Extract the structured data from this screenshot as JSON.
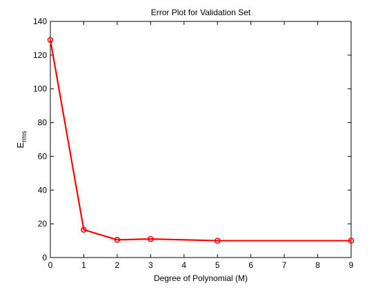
{
  "chart_data": {
    "type": "line",
    "title": "Error Plot for Validation Set",
    "xlabel": "Degree of Polynomial (M)",
    "ylabel_main": "E",
    "ylabel_sub": "rms",
    "xlim": [
      0,
      9
    ],
    "ylim": [
      0,
      140
    ],
    "xticks": [
      0,
      1,
      2,
      3,
      4,
      5,
      6,
      7,
      8,
      9
    ],
    "yticks": [
      0,
      20,
      40,
      60,
      80,
      100,
      120,
      140
    ],
    "grid": false,
    "series": [
      {
        "color": "#ff0000",
        "marker": "circle",
        "x": [
          0,
          1,
          2,
          3,
          5,
          9
        ],
        "y": [
          129,
          16.5,
          10.5,
          11,
          10,
          10
        ]
      }
    ]
  }
}
